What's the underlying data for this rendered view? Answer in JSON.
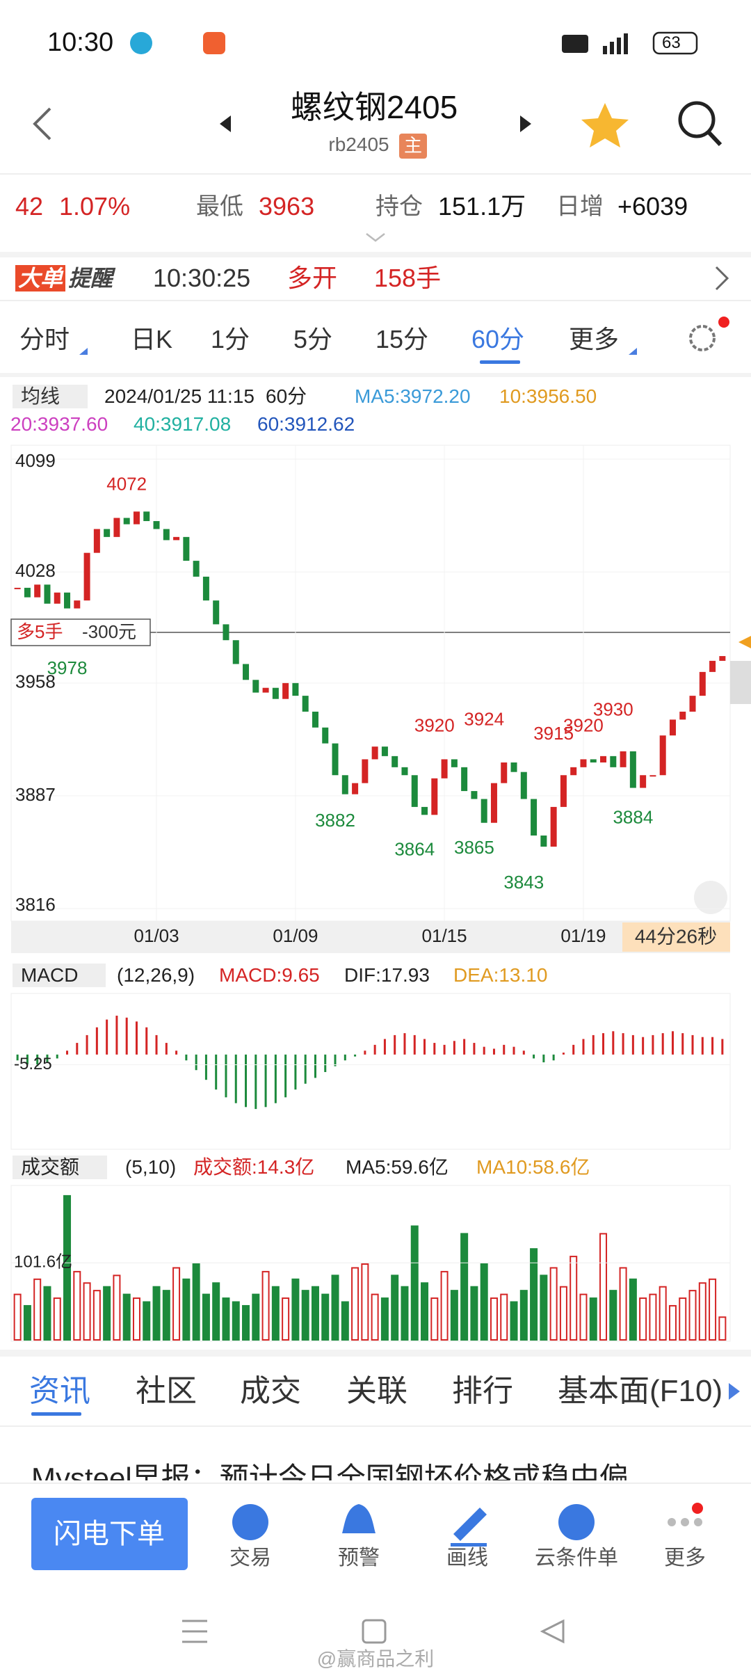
{
  "status": {
    "time": "10:30",
    "battery": "63"
  },
  "header": {
    "title": "螺纹钢2405",
    "code": "rb2405",
    "tag": "主"
  },
  "quote": {
    "change": "42",
    "pct": "1.07%",
    "low_label": "最低",
    "low": "3963",
    "oi_label": "持仓",
    "oi": "151.1万",
    "inc_label": "日增",
    "inc": "+6039"
  },
  "alert": {
    "badge1": "大单",
    "badge2": "提醒",
    "time": "10:30:25",
    "action": "多开",
    "qty": "158手"
  },
  "tabs": [
    "分时",
    "日K",
    "1分",
    "5分",
    "15分",
    "60分",
    "更多"
  ],
  "ma_info": {
    "label": "均线",
    "date": "2024/01/25 11:15",
    "period": "60分",
    "ma5": "MA5:3972.20",
    "ma10": "10:3956.50",
    "ma20": "20:3937.60",
    "ma40": "40:3917.08",
    "ma60": "60:3912.62"
  },
  "chart_data": {
    "type": "candlestick",
    "closes": [
      4018,
      4012,
      4020,
      4008,
      4015,
      4005,
      4010,
      4040,
      4055,
      4050,
      4062,
      4058,
      4066,
      4060,
      4055,
      4048,
      4050,
      4035,
      4025,
      4010,
      3995,
      3985,
      3970,
      3960,
      3952,
      3955,
      3948,
      3958,
      3950,
      3940,
      3930,
      3920,
      3900,
      3888,
      3895,
      3910,
      3918,
      3912,
      3905,
      3900,
      3880,
      3875,
      3898,
      3910,
      3905,
      3890,
      3885,
      3870,
      3895,
      3908,
      3902,
      3885,
      3862,
      3855,
      3880,
      3900,
      3905,
      3910,
      3908,
      3912,
      3905,
      3915,
      3892,
      3900,
      3900,
      3925,
      3935,
      3940,
      3950,
      3965,
      3972,
      3975
    ],
    "ylim": [
      3816,
      4099
    ],
    "yticks": [
      4099,
      4028,
      3958,
      3887,
      3816
    ],
    "date_ticks": [
      {
        "value": 14,
        "label": "01/03"
      },
      {
        "value": 28,
        "label": "01/09"
      },
      {
        "value": 43,
        "label": "01/15"
      },
      {
        "value": 57,
        "label": "01/19"
      }
    ],
    "highs": [
      {
        "value": 4072,
        "index": 11
      },
      {
        "value": 3920,
        "index": 42
      },
      {
        "value": 3924,
        "index": 47
      },
      {
        "value": 3915,
        "index": 54
      },
      {
        "value": 3920,
        "index": 57
      },
      {
        "value": 3930,
        "index": 60
      }
    ],
    "lows": [
      {
        "value": 3978,
        "index": 5
      },
      {
        "value": 3882,
        "index": 32
      },
      {
        "value": 3864,
        "index": 40
      },
      {
        "value": 3865,
        "index": 46
      },
      {
        "value": 3843,
        "index": 51
      },
      {
        "value": 3884,
        "index": 62
      }
    ],
    "position": {
      "label": "多5手",
      "pnl": "-300元"
    },
    "countdown": "44分26秒"
  },
  "macd": {
    "label": "MACD",
    "params": "(12,26,9)",
    "macd": "MACD:9.65",
    "dif": "DIF:17.93",
    "dea": "DEA:13.10",
    "values": [
      -3,
      -5,
      -6,
      -4,
      -2,
      2,
      6,
      10,
      14,
      18,
      20,
      19,
      17,
      14,
      10,
      6,
      2,
      -3,
      -8,
      -13,
      -18,
      -22,
      -25,
      -27,
      -28,
      -27,
      -25,
      -22,
      -18,
      -15,
      -12,
      -9,
      -6,
      -3,
      -1,
      2,
      5,
      8,
      10,
      11,
      10,
      8,
      6,
      5,
      7,
      8,
      6,
      4,
      3,
      5,
      4,
      2,
      -2,
      -4,
      -3,
      1,
      5,
      8,
      10,
      11,
      12,
      11,
      10,
      9,
      10,
      11,
      12,
      11,
      10,
      9,
      9,
      8
    ],
    "ylim": [
      -48,
      30
    ],
    "yticks": [
      -5.25
    ]
  },
  "volume": {
    "label": "成交额",
    "params": "(5,10)",
    "amount": "成交额:14.3亿",
    "ma5": "MA5:59.6亿",
    "ma10": "MA10:58.6亿",
    "values": [
      60,
      45,
      80,
      70,
      55,
      190,
      90,
      75,
      65,
      70,
      85,
      60,
      55,
      50,
      70,
      65,
      95,
      80,
      100,
      60,
      75,
      55,
      50,
      45,
      60,
      90,
      70,
      55,
      80,
      65,
      70,
      60,
      85,
      50,
      95,
      100,
      60,
      55,
      85,
      70,
      150,
      75,
      55,
      90,
      65,
      140,
      70,
      100,
      55,
      60,
      50,
      65,
      120,
      85,
      95,
      70,
      110,
      60,
      55,
      140,
      65,
      95,
      80,
      55,
      60,
      70,
      45,
      55,
      65,
      75,
      80,
      30
    ],
    "ylim": [
      0,
      200
    ],
    "yticks": [
      {
        "value": 101.6,
        "label": "101.6亿"
      }
    ]
  },
  "bottom_tabs": [
    "资讯",
    "社区",
    "成交",
    "关联",
    "排行",
    "基本面(F10)"
  ],
  "news": "Mysteel早报：预计今日全国钢坯价格或稳中偏",
  "toolbar": {
    "button": "闪电下单",
    "items": [
      "交易",
      "预警",
      "画线",
      "云条件单",
      "更多"
    ]
  },
  "watermark": "@赢商品之利"
}
